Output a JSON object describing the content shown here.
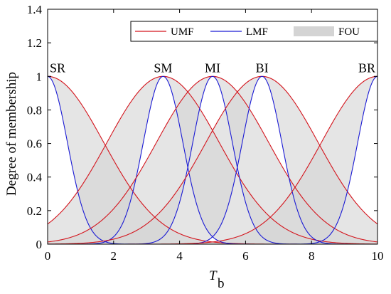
{
  "colors": {
    "umf": "#d4141c",
    "lmf": "#1a1ad4",
    "fou_fill": "#d4d4d4",
    "axis": "#000000"
  },
  "chart_data": {
    "type": "line",
    "title": "",
    "xlabel": "T",
    "xlabel_subscript": "b",
    "ylabel": "Degree of membership",
    "xlim": [
      0,
      10
    ],
    "ylim": [
      0,
      1.4
    ],
    "xticks": [
      0,
      2,
      4,
      6,
      8,
      10
    ],
    "yticks": [
      0,
      0.2,
      0.4,
      0.6,
      0.8,
      1,
      1.2,
      1.4
    ],
    "ytick_labels": [
      "0",
      "0.2",
      "0.4",
      "0.6",
      "0.8",
      "1",
      "1.2",
      "1.4"
    ],
    "grid": false,
    "legend_position": "top-right",
    "legend": [
      {
        "key": "umf",
        "label": "UMF"
      },
      {
        "key": "lmf",
        "label": "LMF"
      },
      {
        "key": "fou",
        "label": "FOU"
      }
    ],
    "membership_functions": [
      {
        "label": "SR",
        "center": 0,
        "umf_sigma": 1.7,
        "lmf_sigma": 0.6
      },
      {
        "label": "SM",
        "center": 3.5,
        "umf_sigma": 1.7,
        "lmf_sigma": 0.6
      },
      {
        "label": "MI",
        "center": 5,
        "umf_sigma": 1.7,
        "lmf_sigma": 0.6
      },
      {
        "label": "BI",
        "center": 6.5,
        "umf_sigma": 1.7,
        "lmf_sigma": 0.6
      },
      {
        "label": "BR",
        "center": 10,
        "umf_sigma": 1.7,
        "lmf_sigma": 0.6
      }
    ]
  }
}
